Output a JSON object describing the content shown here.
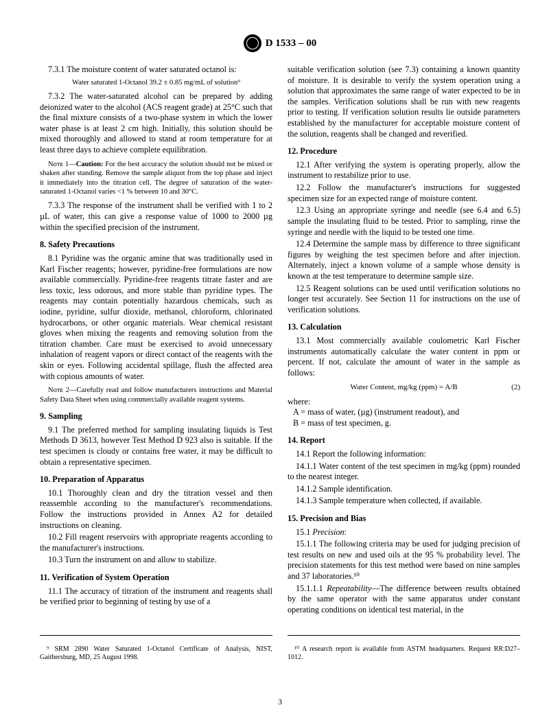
{
  "header": {
    "designation": "D 1533 – 00"
  },
  "left": {
    "s731_num": "7.3.1",
    "s731_text": "The moisture content of water saturated octanol is:",
    "s731_eq": "Water saturated 1-Octanol 39.2 ± 0.85 mg/mL of solution⁹",
    "s732_num": "7.3.2",
    "s732_text": "The water-saturated alcohol can be prepared by adding deionized water to the alcohol (ACS reagent grade) at 25°C such that the final mixture consists of a two-phase system in which the lower water phase is at least 2 cm high. Initially, this solution should be mixed thoroughly and allowed to stand at room temperature for at least three days to achieve complete equilibration.",
    "note1_label": "Nᴏᴛᴇ 1—",
    "note1_caution": "Caution:",
    "note1_text": " For the best accuracy the solution should not be mixed or shaken after standing. Remove the sample aliquot from the top phase and inject it immediately into the titration cell. The degree of saturation of the water-saturated 1-Octanol varies <1 % between 10 and 30°C.",
    "s733_num": "7.3.3",
    "s733_text": "The response of the instrument shall be verified with 1 to 2 µL of water, this can give a response value of 1000 to 2000 µg within the specified precision of the instrument.",
    "s8_title": "8.  Safety Precautions",
    "s81_num": "8.1",
    "s81_text": "Pyridine was the organic amine that was traditionally used in Karl Fischer reagents; however, pyridine-free formulations are now available commercially. Pyridine-free reagents titrate faster and are less toxic, less odorous, and more stable than pyridine types. The reagents may contain potentially hazardous chemicals, such as iodine, pyridine, sulfur dioxide, methanol, chloroform, chlorinated hydrocarbons, or other organic materials. Wear chemical resistant gloves when mixing the reagents and removing solution from the titration chamber. Care must be exercised to avoid unnecessary inhalation of reagent vapors or direct contact of the reagents with the skin or eyes. Following accidental spillage, flush the affected area with copious amounts of water.",
    "note2_label": "Nᴏᴛᴇ 2—",
    "note2_text": "Carefully read and follow manufacturers instructions and Material Safety Data Sheet when using commercially available reagent systems.",
    "s9_title": "9.  Sampling",
    "s91_num": "9.1",
    "s91_text": "The preferred method for sampling insulating liquids is Test Methods D 3613, however Test Method D 923 also is suitable. If the test specimen is cloudy or contains free water, it may be difficult to obtain a representative specimen.",
    "s10_title": "10.  Preparation of Apparatus",
    "s101_num": "10.1",
    "s101_text": "Thoroughly clean and dry the titration vessel and then reassemble according to the manufacturer's recommendations. Follow the instructions provided in Annex A2 for detailed instructions on cleaning.",
    "s102_num": "10.2",
    "s102_text": "Fill reagent reservoirs with appropriate reagents according to the manufacturer's instructions.",
    "s103_num": "10.3",
    "s103_text": "Turn the instrument on and allow to stabilize.",
    "s11_title": "11.  Verification of System Operation",
    "s111_num": "11.1",
    "s111_text": "The accuracy of titration of the instrument and reagents shall be verified prior to beginning of testing by use of a"
  },
  "right": {
    "s111_cont": "suitable verification solution (see 7.3) containing a known quantity of moisture. It is desirable to verify the system operation using a solution that approximates the same range of water expected to be in the samples. Verification solutions shall be run with new reagents prior to testing. If verification solution results lie outside parameters established by the manufacturer for acceptable moisture content of the solution, reagents shall be changed and reverified.",
    "s12_title": "12.  Procedure",
    "s121_num": "12.1",
    "s121_text": "After verifying the system is operating properly, allow the instrument to restabilize prior to use.",
    "s122_num": "12.2",
    "s122_text": "Follow the manufacturer's instructions for suggested specimen size for an expected range of moisture content.",
    "s123_num": "12.3",
    "s123_text": "Using an appropriate syringe and needle (see 6.4 and 6.5) sample the insulating fluid to be tested. Prior to sampling, rinse the syringe and needle with the liquid to be tested one time.",
    "s124_num": "12.4",
    "s124_text": "Determine the sample mass by difference to three significant figures by weighing the test specimen before and after injection. Alternately, inject a known volume of a sample whose density is known at the test temperature to determine sample size.",
    "s125_num": "12.5",
    "s125_text": "Reagent solutions can be used until verification solutions no longer test accurately. See Section 11 for instructions on the use of verification solutions.",
    "s13_title": "13.  Calculation",
    "s131_num": "13.1",
    "s131_text": "Most commercially available coulometric Karl Fischer instruments automatically calculate the water content in ppm or percent. If not, calculate the amount of water in the sample as follows:",
    "eq2": "Water Content, mg/kg (ppm) = A/B",
    "eq2_num": "(2)",
    "where_label": "where:",
    "where_a": "A   =  mass of water, (µg) (instrument readout), and",
    "where_b": "B   =  mass of test specimen, g.",
    "s14_title": "14.  Report",
    "s141_num": "14.1",
    "s141_text": "Report the following information:",
    "s1411_num": "14.1.1",
    "s1411_text": "Water content of the test specimen in mg/kg (ppm) rounded to the nearest integer.",
    "s1412_num": "14.1.2",
    "s1412_text": "Sample identification.",
    "s1413_num": "14.1.3",
    "s1413_text": "Sample temperature when collected, if available.",
    "s15_title": "15.  Precision and Bias",
    "s151_num": "15.1",
    "s151_label": "Precision",
    "s1511_num": "15.1.1",
    "s1511_text": "The following criteria may be used for judging precision of test results on new and used oils at the 95 % probability level. The precision statements for this test method were based on nine samples and 37 laboratories.¹⁰",
    "s15111_num": "15.1.1.1",
    "s15111_label": "Repeatability",
    "s15111_text": "—The difference between results obtained by the same operator with the same apparatus under constant operating conditions on identical test material, in the"
  },
  "footnotes": {
    "fn9": "⁹ SRM 2890 Water Saturated 1-Octanol Certificate of Analysis, NIST, Gaithersburg, MD, 25 August 1998.",
    "fn10": "¹⁰ A research report is available from ASTM headquarters. Request RR:D27–1012."
  },
  "page_number": "3"
}
